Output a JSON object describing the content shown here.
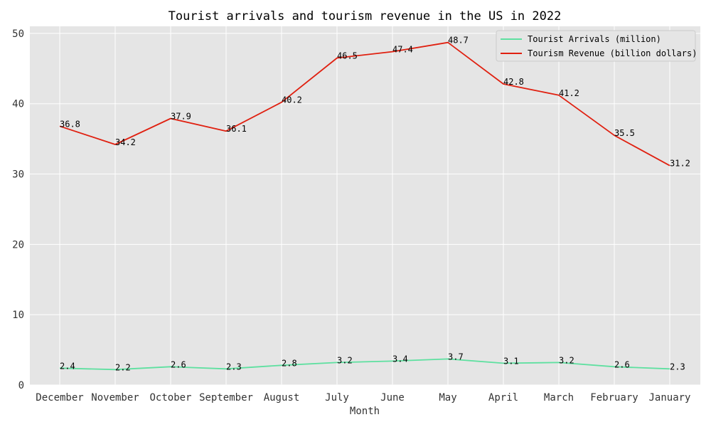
{
  "chart_data": {
    "type": "line",
    "title": "Tourist arrivals and tourism revenue in the US in 2022",
    "xlabel": "Month",
    "ylabel": "",
    "categories": [
      "December",
      "November",
      "October",
      "September",
      "August",
      "July",
      "June",
      "May",
      "April",
      "March",
      "February",
      "January"
    ],
    "ylim": [
      0,
      51
    ],
    "yticks": [
      0,
      10,
      20,
      30,
      40,
      50
    ],
    "grid": true,
    "legend_position": "top-right",
    "series": [
      {
        "name": "Tourist Arrivals (million)",
        "color": "#5ee0a0",
        "values": [
          2.4,
          2.2,
          2.6,
          2.3,
          2.8,
          3.2,
          3.4,
          3.7,
          3.1,
          3.2,
          2.6,
          2.3
        ],
        "labels": [
          "2.4",
          "2.2",
          "2.6",
          "2.3",
          "2.8",
          "3.2",
          "3.4",
          "3.7",
          "3.1",
          "3.2",
          "2.6",
          "2.3"
        ]
      },
      {
        "name": "Tourism Revenue (billion dollars)",
        "color": "#e02010",
        "values": [
          36.8,
          34.2,
          37.9,
          36.1,
          40.2,
          46.5,
          47.4,
          48.7,
          42.8,
          41.2,
          35.5,
          31.2
        ],
        "labels": [
          "36.8",
          "34.2",
          "37.9",
          "36.1",
          "40.2",
          "46.5",
          "47.4",
          "48.7",
          "42.8",
          "41.2",
          "35.5",
          "31.2"
        ]
      }
    ]
  }
}
